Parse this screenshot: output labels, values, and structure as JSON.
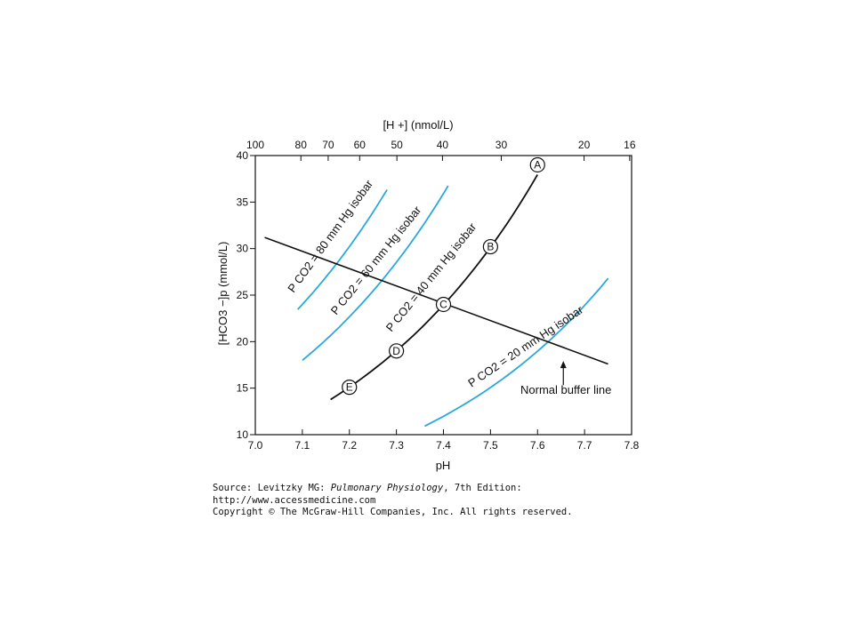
{
  "chart_data": {
    "type": "line",
    "x_axis": {
      "label": "pH",
      "lim": [
        7.0,
        7.8
      ],
      "ticks": [
        "7.0",
        "7.1",
        "7.2",
        "7.3",
        "7.4",
        "7.5",
        "7.6",
        "7.7",
        "7.8"
      ]
    },
    "top_axis": {
      "label": "[H +] (nmol/L)",
      "ticks": [
        {
          "label": "100",
          "h": 100
        },
        {
          "label": "80",
          "h": 80
        },
        {
          "label": "70",
          "h": 70
        },
        {
          "label": "60",
          "h": 60
        },
        {
          "label": "50",
          "h": 50
        },
        {
          "label": "40",
          "h": 40
        },
        {
          "label": "30",
          "h": 30
        },
        {
          "label": "20",
          "h": 20
        },
        {
          "label": "16",
          "h": 16
        }
      ]
    },
    "y_axis": {
      "label": "[HCO3 −]p (mmol/L)",
      "lim": [
        10,
        40
      ],
      "ticks": [
        "10",
        "15",
        "20",
        "25",
        "30",
        "35",
        "40"
      ]
    },
    "colors": {
      "isobar": "#29a8df",
      "line": "#111111"
    },
    "isobars": [
      {
        "label": "P CO2 = 80 mm Hg isobar",
        "pco2": 80,
        "ph_range": [
          7.09,
          7.28
        ]
      },
      {
        "label": "P CO2 = 60 mm Hg isobar",
        "pco2": 60,
        "ph_range": [
          7.1,
          7.41
        ]
      },
      {
        "label": "P CO2 = 40 mm Hg isobar",
        "pco2": 40,
        "ph_range": [
          7.16,
          7.6
        ]
      },
      {
        "label": "P CO2 = 20 mm Hg isobar",
        "pco2": 20,
        "ph_range": [
          7.36,
          7.75
        ]
      }
    ],
    "buffer_line": {
      "label": "Normal buffer line",
      "points": [
        [
          7.02,
          31.2
        ],
        [
          7.75,
          17.6
        ]
      ],
      "arrow_at": [
        7.67,
        18.2
      ]
    },
    "points": [
      {
        "label": "A",
        "x": 7.6,
        "y": 39.0
      },
      {
        "label": "B",
        "x": 7.5,
        "y": 30.2
      },
      {
        "label": "C",
        "x": 7.4,
        "y": 24.0
      },
      {
        "label": "D",
        "x": 7.3,
        "y": 19.0
      },
      {
        "label": "E",
        "x": 7.2,
        "y": 15.1
      }
    ]
  },
  "footer": {
    "source_prefix": "Source: Levitzky MG: ",
    "book_title": "Pulmonary Physiology",
    "source_suffix": ", 7th Edition:",
    "url": "http://www.accessmedicine.com",
    "copyright": "Copyright © The McGraw-Hill Companies, Inc. All rights reserved."
  }
}
